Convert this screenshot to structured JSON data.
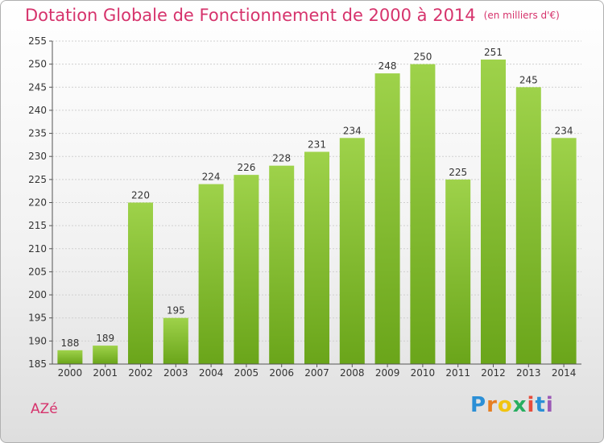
{
  "title": "Dotation Globale de Fonctionnement de 2000 à 2014",
  "unit": "(en milliers d'€)",
  "commune": "AZé",
  "logo": {
    "letters": [
      "P",
      "r",
      "o",
      "x",
      "i",
      "t",
      "i"
    ],
    "colors": [
      "#2b8fd6",
      "#e67e22",
      "#f1c40f",
      "#27ae60",
      "#e74c3c",
      "#2b8fd6",
      "#9b59b6"
    ]
  },
  "colors": {
    "title": "#d6336c",
    "bar_top": "#9ed24a",
    "bar_bottom": "#6aa51a"
  },
  "chart_data": {
    "type": "bar",
    "categories": [
      "2000",
      "2001",
      "2002",
      "2003",
      "2004",
      "2005",
      "2006",
      "2007",
      "2008",
      "2009",
      "2010",
      "2011",
      "2012",
      "2013",
      "2014"
    ],
    "values": [
      188,
      189,
      220,
      195,
      224,
      226,
      228,
      231,
      234,
      248,
      250,
      225,
      251,
      245,
      234
    ],
    "ylim": [
      185,
      255
    ],
    "yticks": [
      185,
      190,
      195,
      200,
      205,
      210,
      215,
      220,
      225,
      230,
      235,
      240,
      245,
      250,
      255
    ],
    "grid": true
  }
}
